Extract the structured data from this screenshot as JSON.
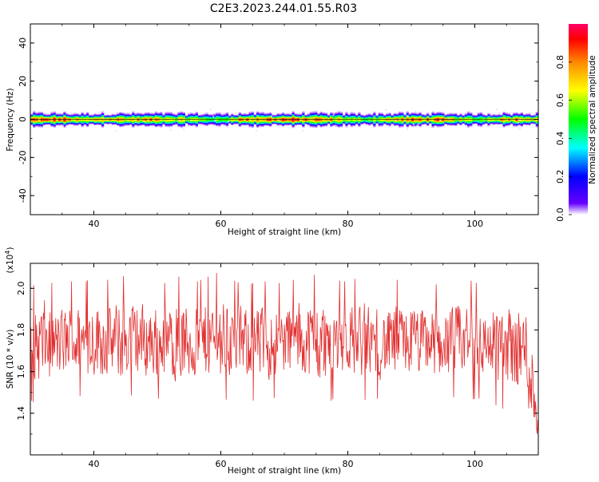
{
  "figure": {
    "title": "C2E3.2023.244.01.55.R03"
  },
  "chart_data": [
    {
      "type": "heatmap",
      "name": "spectrogram",
      "xlabel": "Height of straight line (km)",
      "ylabel": "Frequency (Hz)",
      "xlim": [
        30,
        110
      ],
      "ylim": [
        -50,
        50
      ],
      "x_ticks": [
        40,
        60,
        80,
        100
      ],
      "y_ticks": [
        -40,
        -20,
        0,
        20,
        40
      ],
      "colorbar": {
        "label": "Normalized spectral amplitude",
        "range": [
          0.0,
          1.0
        ],
        "ticks": [
          0.0,
          0.2,
          0.4,
          0.6,
          0.8
        ],
        "colors": [
          "#ffffff",
          "#6600ff",
          "#0000ff",
          "#00ffff",
          "#00ff00",
          "#ffff00",
          "#ff8800",
          "#ff0000",
          "#ff0066"
        ]
      },
      "band_center_hz": 0,
      "band_halfwidth_hz": 3,
      "peak_amplitude_profile": {
        "x": [
          31,
          35,
          38,
          42,
          45,
          50,
          55,
          60,
          62,
          66,
          70,
          74,
          78,
          82,
          84,
          88,
          92,
          96,
          100,
          104,
          108,
          110
        ],
        "amp": [
          0.9,
          0.95,
          0.7,
          0.9,
          0.8,
          0.85,
          0.7,
          0.55,
          0.85,
          0.9,
          0.95,
          0.9,
          0.8,
          0.6,
          0.7,
          0.85,
          0.9,
          0.8,
          0.6,
          0.85,
          0.9,
          0.7
        ]
      }
    },
    {
      "type": "line",
      "name": "snr",
      "xlabel": "Height of straight line (km)",
      "ylabel": "SNR (10 * v/v)",
      "y_multiplier_label": "(x10",
      "y_multiplier_exp": "4",
      "xlim": [
        30,
        110
      ],
      "ylim": [
        1.2,
        2.12
      ],
      "x_ticks": [
        40,
        60,
        80,
        100
      ],
      "y_ticks": [
        1.4,
        1.6,
        1.8,
        2.0
      ],
      "color": "#e23030",
      "series_profile": {
        "x": [
          30,
          32,
          34,
          36,
          38,
          40,
          42,
          44,
          46,
          48,
          50,
          52,
          54,
          56,
          58,
          60,
          62,
          64,
          66,
          68,
          70,
          72,
          74,
          76,
          78,
          80,
          82,
          84,
          86,
          88,
          90,
          92,
          94,
          96,
          98,
          100,
          102,
          104,
          106,
          108,
          109,
          110
        ],
        "mean": [
          1.72,
          1.74,
          1.73,
          1.75,
          1.74,
          1.76,
          1.75,
          1.74,
          1.76,
          1.75,
          1.74,
          1.75,
          1.73,
          1.74,
          1.75,
          1.76,
          1.75,
          1.74,
          1.73,
          1.74,
          1.75,
          1.76,
          1.75,
          1.74,
          1.75,
          1.76,
          1.75,
          1.74,
          1.73,
          1.74,
          1.75,
          1.74,
          1.73,
          1.74,
          1.75,
          1.74,
          1.73,
          1.74,
          1.72,
          1.7,
          1.55,
          1.35
        ],
        "amplitude": [
          0.16,
          0.2,
          0.16,
          0.17,
          0.16,
          0.18,
          0.17,
          0.19,
          0.17,
          0.18,
          0.17,
          0.16,
          0.2,
          0.17,
          0.18,
          0.19,
          0.17,
          0.16,
          0.18,
          0.17,
          0.16,
          0.17,
          0.18,
          0.2,
          0.17,
          0.16,
          0.18,
          0.17,
          0.16,
          0.18,
          0.17,
          0.16,
          0.17,
          0.16,
          0.18,
          0.17,
          0.16,
          0.2,
          0.18,
          0.22,
          0.2,
          0.1
        ]
      },
      "max_value": 2.1,
      "min_value": 1.21
    }
  ]
}
